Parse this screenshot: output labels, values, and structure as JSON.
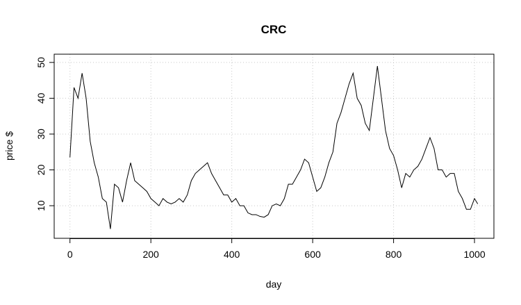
{
  "chart_data": {
    "type": "line",
    "title": "CRC",
    "x_label": "day",
    "y_label": "price $",
    "x": [
      0,
      10,
      20,
      30,
      40,
      50,
      60,
      70,
      80,
      90,
      100,
      110,
      120,
      130,
      140,
      150,
      160,
      170,
      180,
      190,
      200,
      210,
      220,
      230,
      240,
      250,
      260,
      270,
      280,
      290,
      300,
      310,
      320,
      330,
      340,
      350,
      360,
      370,
      380,
      390,
      400,
      410,
      420,
      430,
      440,
      450,
      460,
      470,
      480,
      490,
      500,
      510,
      520,
      530,
      540,
      550,
      560,
      570,
      580,
      590,
      600,
      610,
      620,
      630,
      640,
      650,
      660,
      670,
      680,
      690,
      700,
      710,
      720,
      730,
      740,
      750,
      760,
      770,
      780,
      790,
      800,
      810,
      820,
      830,
      840,
      850,
      860,
      870,
      880,
      890,
      900,
      910,
      920,
      930,
      940,
      950,
      960,
      970,
      980,
      990,
      1000,
      1008
    ],
    "series": [
      {
        "name": "price",
        "color": "#000000",
        "values": [
          23.5,
          43,
          40,
          47,
          40,
          28,
          22,
          18,
          12,
          11,
          3.5,
          16,
          15,
          11,
          17,
          22,
          17,
          16,
          15,
          14,
          12,
          11,
          10,
          12,
          11,
          10.5,
          11,
          12,
          11,
          13,
          17,
          19,
          20,
          21,
          22,
          19,
          17,
          15,
          13,
          13,
          11,
          12,
          10,
          10,
          8,
          7.5,
          7.5,
          7,
          6.8,
          7.5,
          10,
          10.5,
          10,
          12,
          16,
          16,
          18,
          20,
          23,
          22,
          18,
          14,
          15,
          18,
          22,
          25,
          33,
          36,
          40,
          44,
          47,
          40,
          38,
          33,
          31,
          40,
          49,
          40,
          31,
          26,
          24,
          20,
          15,
          19,
          18,
          20,
          21,
          23,
          26,
          29,
          26,
          20,
          20,
          18,
          19,
          19,
          14,
          12,
          9,
          9,
          12,
          10.5
        ]
      }
    ],
    "xlim": [
      -39,
      1048
    ],
    "ylim": [
      0.9,
      52.3
    ],
    "xticks": [
      0,
      200,
      400,
      600,
      800,
      1000
    ],
    "yticks": [
      10,
      20,
      30,
      40,
      50
    ],
    "grid": true
  }
}
